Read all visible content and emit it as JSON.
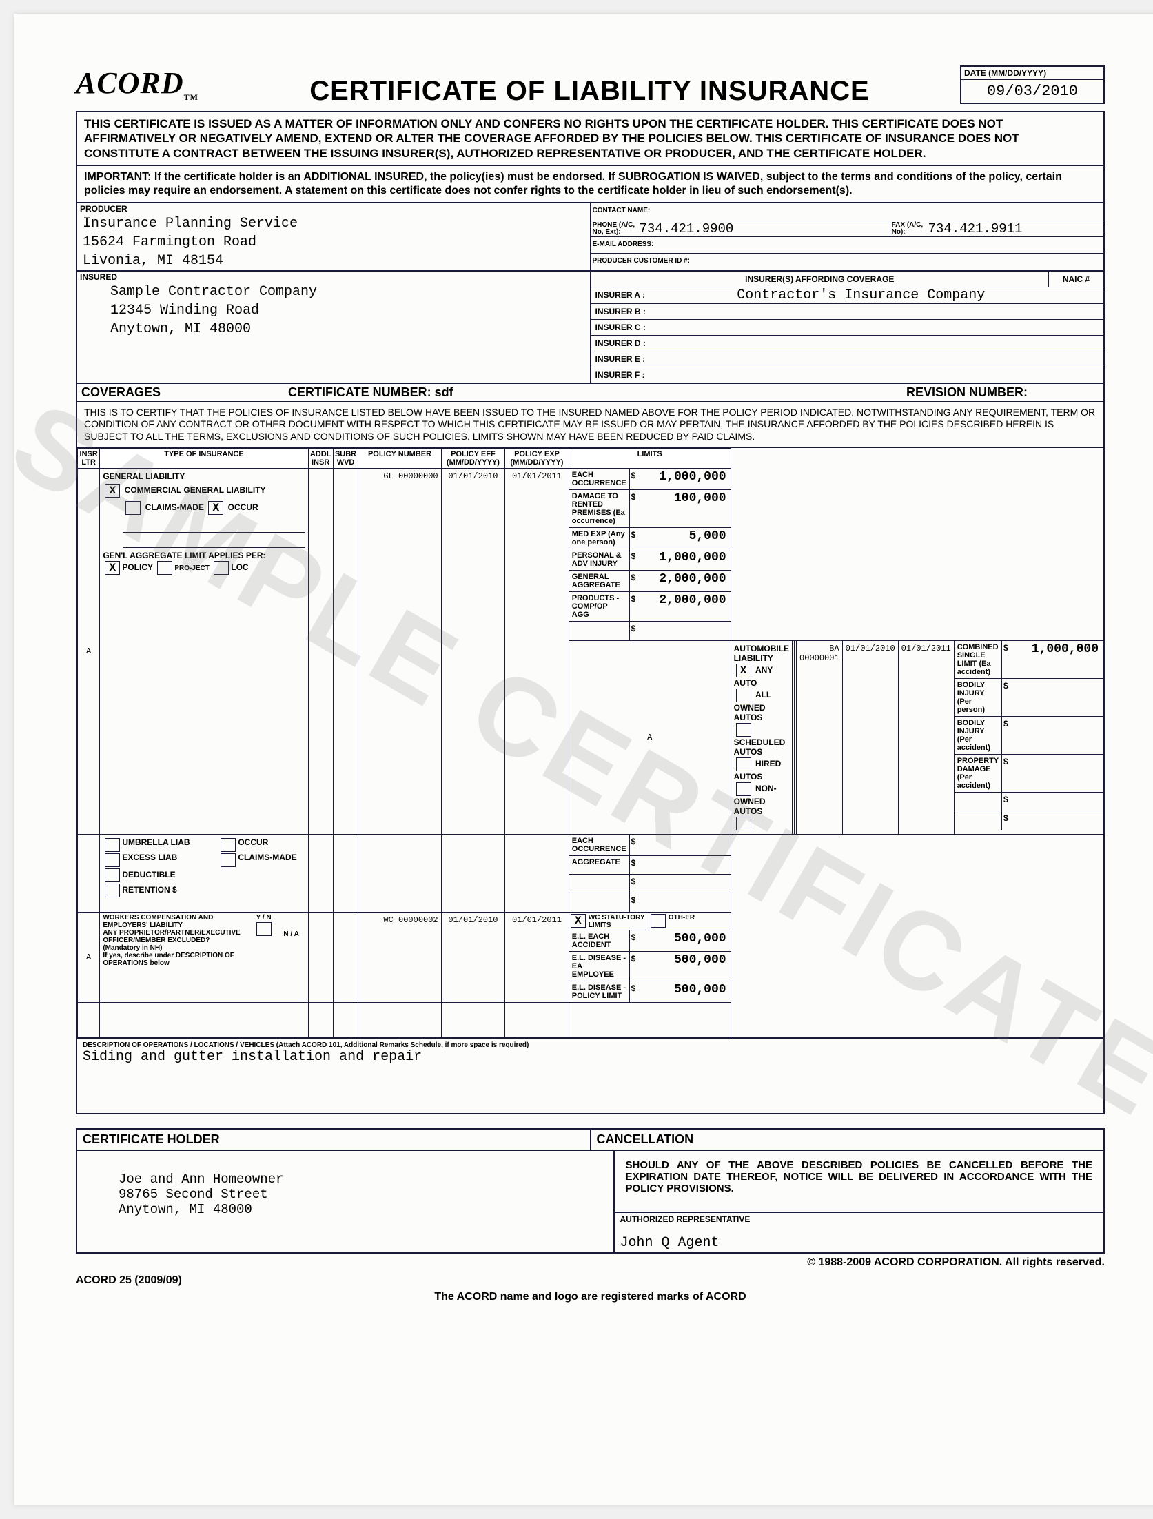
{
  "logo": "ACORD",
  "title": "CERTIFICATE OF LIABILITY INSURANCE",
  "date_label": "DATE (MM/DD/YYYY)",
  "date_value": "09/03/2010",
  "notice1": "THIS CERTIFICATE IS ISSUED AS A MATTER OF INFORMATION ONLY AND CONFERS NO RIGHTS UPON THE CERTIFICATE HOLDER. THIS CERTIFICATE DOES NOT AFFIRMATIVELY OR NEGATIVELY AMEND, EXTEND OR ALTER THE COVERAGE AFFORDED BY THE POLICIES BELOW. THIS CERTIFICATE OF INSURANCE DOES NOT CONSTITUTE A CONTRACT BETWEEN THE ISSUING INSURER(S), AUTHORIZED REPRESENTATIVE OR PRODUCER, AND THE CERTIFICATE HOLDER.",
  "notice2": "IMPORTANT: If the certificate holder is an ADDITIONAL INSURED, the policy(ies) must be endorsed. If SUBROGATION IS WAIVED, subject to the terms and conditions of the policy, certain policies may require an endorsement. A statement on this certificate does not confer rights to the certificate holder in lieu of such endorsement(s).",
  "producer_label": "PRODUCER",
  "producer": {
    "name": "Insurance Planning Service",
    "addr1": "15624 Farmington Road",
    "addr2": "Livonia, MI 48154"
  },
  "contact_lbl": "CONTACT NAME:",
  "phone_lbl": "PHONE (A/C, No, Ext):",
  "phone": "734.421.9900",
  "fax_lbl": "FAX (A/C, No):",
  "fax": "734.421.9911",
  "email_lbl": "E-MAIL ADDRESS:",
  "custid_lbl": "PRODUCER CUSTOMER ID #:",
  "insured_label": "INSURED",
  "insured": {
    "name": "Sample Contractor Company",
    "addr1": "12345 Winding Road",
    "addr2": "Anytown, MI 48000"
  },
  "insurers_hdr": "INSURER(S) AFFORDING COVERAGE",
  "naic_hdr": "NAIC #",
  "insurers": {
    "A": "Contractor's Insurance Company",
    "B": "",
    "C": "",
    "D": "",
    "E": "",
    "F": ""
  },
  "coverages_lbl": "COVERAGES",
  "certno_lbl": "CERTIFICATE NUMBER:",
  "certno": "sdf",
  "revno_lbl": "REVISION NUMBER:",
  "cert_text": "THIS IS TO CERTIFY THAT THE POLICIES OF INSURANCE LISTED BELOW HAVE BEEN ISSUED TO THE INSURED NAMED ABOVE FOR THE POLICY PERIOD INDICATED. NOTWITHSTANDING ANY REQUIREMENT, TERM OR CONDITION OF ANY CONTRACT OR OTHER DOCUMENT WITH RESPECT TO WHICH THIS CERTIFICATE MAY BE ISSUED OR MAY PERTAIN, THE INSURANCE AFFORDED BY THE POLICIES DESCRIBED HEREIN IS SUBJECT TO ALL THE TERMS, EXCLUSIONS AND CONDITIONS OF SUCH POLICIES. LIMITS SHOWN MAY HAVE BEEN REDUCED BY PAID CLAIMS.",
  "th": {
    "insr_ltr": "INSR LTR",
    "type": "TYPE OF INSURANCE",
    "addl": "ADDL INSR",
    "subr": "SUBR WVD",
    "policy": "POLICY NUMBER",
    "eff": "POLICY EFF (MM/DD/YYYY)",
    "exp": "POLICY EXP (MM/DD/YYYY)",
    "limits": "LIMITS"
  },
  "gl": {
    "letter": "A",
    "hdr": "GENERAL LIABILITY",
    "cgl_chk": "X",
    "cgl": "COMMERCIAL GENERAL LIABILITY",
    "claims_lbl": "CLAIMS-MADE",
    "occur_chk": "X",
    "occur_lbl": "OCCUR",
    "agg_lbl": "GEN'L AGGREGATE LIMIT APPLIES PER:",
    "policy_chk": "X",
    "policy_lbl": "POLICY",
    "project_lbl": "PRO-JECT",
    "loc_lbl": "LOC",
    "policy_no": "GL 00000000",
    "eff": "01/01/2010",
    "exp": "01/01/2011",
    "limits": [
      {
        "l": "EACH OCCURRENCE",
        "v": "1,000,000"
      },
      {
        "l": "DAMAGE TO RENTED PREMISES (Ea occurrence)",
        "v": "100,000"
      },
      {
        "l": "MED EXP (Any one person)",
        "v": "5,000"
      },
      {
        "l": "PERSONAL & ADV INJURY",
        "v": "1,000,000"
      },
      {
        "l": "GENERAL AGGREGATE",
        "v": "2,000,000"
      },
      {
        "l": "PRODUCTS - COMP/OP AGG",
        "v": "2,000,000"
      },
      {
        "l": "",
        "v": ""
      }
    ]
  },
  "auto": {
    "letter": "A",
    "hdr": "AUTOMOBILE LIABILITY",
    "any_chk": "X",
    "any": "ANY AUTO",
    "all": "ALL OWNED AUTOS",
    "sched": "SCHEDULED AUTOS",
    "hired": "HIRED AUTOS",
    "nonowned": "NON-OWNED AUTOS",
    "policy_no": "BA 00000001",
    "eff": "01/01/2010",
    "exp": "01/01/2011",
    "limits": [
      {
        "l": "COMBINED SINGLE LIMIT (Ea accident)",
        "v": "1,000,000"
      },
      {
        "l": "BODILY INJURY (Per person)",
        "v": ""
      },
      {
        "l": "BODILY INJURY (Per accident)",
        "v": ""
      },
      {
        "l": "PROPERTY DAMAGE (Per accident)",
        "v": ""
      },
      {
        "l": "",
        "v": ""
      },
      {
        "l": "",
        "v": ""
      }
    ]
  },
  "umb": {
    "umb_lbl": "UMBRELLA LIAB",
    "occur": "OCCUR",
    "excess_lbl": "EXCESS LIAB",
    "claims": "CLAIMS-MADE",
    "ded": "DEDUCTIBLE",
    "ret": "RETENTION   $",
    "limits": [
      {
        "l": "EACH OCCURRENCE",
        "v": ""
      },
      {
        "l": "AGGREGATE",
        "v": ""
      },
      {
        "l": "",
        "v": ""
      },
      {
        "l": "",
        "v": ""
      }
    ]
  },
  "wc": {
    "letter": "A",
    "hdr": "WORKERS COMPENSATION AND EMPLOYERS' LIABILITY",
    "prop": "ANY PROPRIETOR/PARTNER/EXECUTIVE OFFICER/MEMBER EXCLUDED?",
    "mand": "(Mandatory in NH)",
    "ifyes": "If yes, describe under DESCRIPTION OF OPERATIONS below",
    "yn": "Y / N",
    "na": "N / A",
    "policy_no": "WC 00000002",
    "eff": "01/01/2010",
    "exp": "01/01/2011",
    "stat_chk": "X",
    "stat": "WC STATU-TORY LIMITS",
    "other": "OTH-ER",
    "limits": [
      {
        "l": "E.L. EACH ACCIDENT",
        "v": "500,000"
      },
      {
        "l": "E.L. DISEASE - EA EMPLOYEE",
        "v": "500,000"
      },
      {
        "l": "E.L. DISEASE - POLICY LIMIT",
        "v": "500,000"
      }
    ]
  },
  "desc_lbl": "DESCRIPTION OF OPERATIONS / LOCATIONS / VEHICLES (Attach ACORD 101, Additional Remarks Schedule, if more space is required)",
  "desc": "Siding and gutter installation and repair",
  "holder_lbl": "CERTIFICATE HOLDER",
  "cancel_lbl": "CANCELLATION",
  "cancel_txt": "SHOULD ANY OF THE ABOVE DESCRIBED POLICIES BE CANCELLED BEFORE THE EXPIRATION DATE THEREOF, NOTICE WILL BE DELIVERED IN ACCORDANCE WITH THE POLICY PROVISIONS.",
  "holder": {
    "name": "Joe and Ann Homeowner",
    "addr1": "98765 Second Street",
    "addr2": "Anytown, MI 48000"
  },
  "authrep_lbl": "AUTHORIZED REPRESENTATIVE",
  "authrep": "John Q Agent",
  "copyright": "© 1988-2009 ACORD CORPORATION. All rights reserved.",
  "formno": "ACORD 25 (2009/09)",
  "trademk": "The ACORD name and logo are registered marks of ACORD",
  "watermark": "SAMPLE CERTIFICATE"
}
